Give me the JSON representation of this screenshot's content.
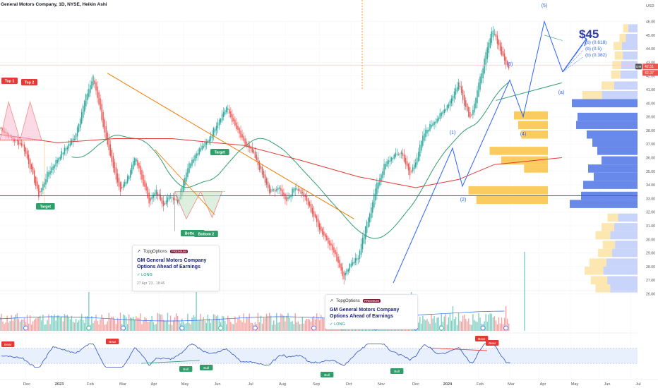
{
  "header": {
    "title": "General Motors Company, 1D, NYSE, Heikin Ashi",
    "currency": "USD"
  },
  "colors": {
    "up": "#26a69a",
    "down": "#ef5350",
    "ma_green": "#2e9e6b",
    "ma_red": "#e53935",
    "orange": "#f57c00",
    "blue": "#2962ff",
    "vp_blue": "#5b7fe8",
    "vp_yellow": "#f9c74f",
    "vp_light_blue": "#c9d4fa",
    "vp_light_yellow": "#fde7b0",
    "rsi_line": "#2f4fc0",
    "rsi_band": "#e8f0fe",
    "price_tag": "#ef5350"
  },
  "chart_data": {
    "type": "candlestick",
    "ylim": [
      26.0,
      46.0
    ],
    "y_ticks": [
      26.0,
      27.0,
      28.0,
      29.0,
      30.0,
      31.0,
      32.0,
      33.0,
      34.0,
      35.0,
      36.0,
      37.0,
      38.0,
      39.0,
      40.0,
      41.0,
      42.0,
      43.0,
      44.0,
      45.0,
      46.0
    ],
    "x_labels": [
      "Dec",
      "2023",
      "Feb",
      "Mar",
      "Apr",
      "May",
      "Jun",
      "Jul",
      "Aug",
      "Sep",
      "Oct",
      "Nov",
      "Dec",
      "2024",
      "Feb",
      "Mar",
      "Apr",
      "May",
      "Jun",
      "Jul"
    ],
    "price_path": [
      {
        "t": 0,
        "p": 38.2
      },
      {
        "t": 8,
        "p": 37.4
      },
      {
        "t": 16,
        "p": 36.9
      },
      {
        "t": 22,
        "p": 35.0
      },
      {
        "t": 27,
        "p": 33.2
      },
      {
        "t": 33,
        "p": 34.8
      },
      {
        "t": 42,
        "p": 36.2
      },
      {
        "t": 52,
        "p": 37.5
      },
      {
        "t": 60,
        "p": 40.5
      },
      {
        "t": 65,
        "p": 41.9
      },
      {
        "t": 69,
        "p": 40.0
      },
      {
        "t": 74,
        "p": 37.2
      },
      {
        "t": 79,
        "p": 35.2
      },
      {
        "t": 84,
        "p": 33.6
      },
      {
        "t": 89,
        "p": 34.5
      },
      {
        "t": 94,
        "p": 36.1
      },
      {
        "t": 99,
        "p": 34.4
      },
      {
        "t": 104,
        "p": 32.8
      },
      {
        "t": 109,
        "p": 33.5
      },
      {
        "t": 114,
        "p": 32.6
      },
      {
        "t": 119,
        "p": 33.2
      },
      {
        "t": 124,
        "p": 32.8
      },
      {
        "t": 131,
        "p": 35.4
      },
      {
        "t": 138,
        "p": 36.5
      },
      {
        "t": 145,
        "p": 37.2
      },
      {
        "t": 152,
        "p": 38.7
      },
      {
        "t": 158,
        "p": 39.7
      },
      {
        "t": 164,
        "p": 38.3
      },
      {
        "t": 170,
        "p": 37.1
      },
      {
        "t": 176,
        "p": 36.4
      },
      {
        "t": 182,
        "p": 35.0
      },
      {
        "t": 188,
        "p": 33.4
      },
      {
        "t": 194,
        "p": 33.8
      },
      {
        "t": 200,
        "p": 32.9
      },
      {
        "t": 206,
        "p": 33.9
      },
      {
        "t": 212,
        "p": 33.2
      },
      {
        "t": 218,
        "p": 31.9
      },
      {
        "t": 224,
        "p": 30.6
      },
      {
        "t": 230,
        "p": 29.7
      },
      {
        "t": 236,
        "p": 28.3
      },
      {
        "t": 240,
        "p": 27.2
      },
      {
        "t": 244,
        "p": 28.2
      },
      {
        "t": 250,
        "p": 28.7
      },
      {
        "t": 256,
        "p": 31.2
      },
      {
        "t": 262,
        "p": 33.7
      },
      {
        "t": 268,
        "p": 35.4
      },
      {
        "t": 274,
        "p": 36.1
      },
      {
        "t": 280,
        "p": 36.4
      },
      {
        "t": 286,
        "p": 34.7
      },
      {
        "t": 290,
        "p": 35.8
      },
      {
        "t": 296,
        "p": 37.8
      },
      {
        "t": 302,
        "p": 38.6
      },
      {
        "t": 308,
        "p": 39.2
      },
      {
        "t": 314,
        "p": 40.2
      },
      {
        "t": 320,
        "p": 41.5
      },
      {
        "t": 324,
        "p": 40.0
      },
      {
        "t": 328,
        "p": 38.9
      },
      {
        "t": 332,
        "p": 40.4
      },
      {
        "t": 336,
        "p": 42.3
      },
      {
        "t": 340,
        "p": 44.0
      },
      {
        "t": 344,
        "p": 45.5
      },
      {
        "t": 347,
        "p": 44.5
      },
      {
        "t": 351,
        "p": 43.3
      },
      {
        "t": 355,
        "p": 42.5
      }
    ],
    "last_price": "42.51",
    "prev_close": "42.37",
    "symbol_tag": "GM",
    "volume_ticks": [
      "26.00",
      "25.00",
      "24.00"
    ],
    "rsi_ticks": [
      "80.00",
      "60.00",
      "40.00",
      "20.00"
    ],
    "rsi_levels": [
      70,
      30
    ],
    "annotations": {
      "top1": "Top 1",
      "top2": "Top 2",
      "target1": "Target",
      "target2": "Target",
      "target3": "Target",
      "bottom1": "Bottom 1",
      "bottom2": "Bottom 2",
      "wave1": "(1)",
      "wave2": "(2)",
      "wave3": "(3)",
      "wave4": "(4)",
      "wave5": "(5)",
      "wave_a": "(a)",
      "target_price": "$45",
      "fib1": "(b) (0.618)",
      "fib2": "(b) (0.5)",
      "fib3": "(b) (0.382)",
      "bear1": "Bear",
      "bear2": "Bear",
      "bear3": "Bear",
      "bull1": "Bull",
      "bull2": "Bull",
      "bull3": "Bull",
      "bull4": "Bull"
    }
  },
  "ideas": [
    {
      "author": "TopgOptions",
      "badge": "PREMIUM",
      "title": "GM General Motors Company Options Ahead of Earnings",
      "tag": "✓ LONG",
      "date": "27 Apr '23 · 18:46"
    },
    {
      "author": "TopgOptions",
      "badge": "PREMIUM",
      "title": "GM General Motors Company Options Ahead of Earnings",
      "tag": "✓ LONG"
    }
  ]
}
